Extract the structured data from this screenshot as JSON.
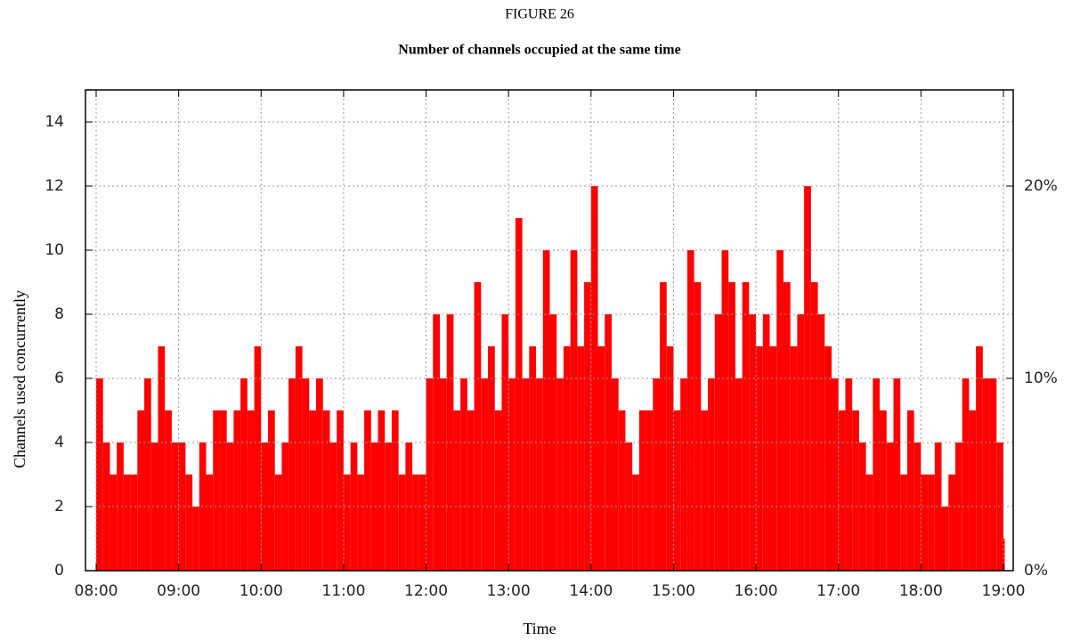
{
  "chart_data": {
    "type": "bar",
    "title": "FIGURE 26",
    "subtitle": "Number of channels occupied at the same time",
    "x_label": "Time",
    "y_label": "Channels used concurrently",
    "categories": [
      "08:00",
      "08:05",
      "08:10",
      "08:15",
      "08:20",
      "08:25",
      "08:30",
      "08:35",
      "08:40",
      "08:45",
      "08:50",
      "08:55",
      "09:00",
      "09:05",
      "09:10",
      "09:15",
      "09:20",
      "09:25",
      "09:30",
      "09:35",
      "09:40",
      "09:45",
      "09:50",
      "09:55",
      "10:00",
      "10:05",
      "10:10",
      "10:15",
      "10:20",
      "10:25",
      "10:30",
      "10:35",
      "10:40",
      "10:45",
      "10:50",
      "10:55",
      "11:00",
      "11:05",
      "11:10",
      "11:15",
      "11:20",
      "11:25",
      "11:30",
      "11:35",
      "11:40",
      "11:45",
      "11:50",
      "11:55",
      "12:00",
      "12:05",
      "12:10",
      "12:15",
      "12:20",
      "12:25",
      "12:30",
      "12:35",
      "12:40",
      "12:45",
      "12:50",
      "12:55",
      "13:00",
      "13:05",
      "13:10",
      "13:15",
      "13:20",
      "13:25",
      "13:30",
      "13:35",
      "13:40",
      "13:45",
      "13:50",
      "13:55",
      "14:00",
      "14:05",
      "14:10",
      "14:15",
      "14:20",
      "14:25",
      "14:30",
      "14:35",
      "14:40",
      "14:45",
      "14:50",
      "14:55",
      "15:00",
      "15:05",
      "15:10",
      "15:15",
      "15:20",
      "15:25",
      "15:30",
      "15:35",
      "15:40",
      "15:45",
      "15:50",
      "15:55",
      "16:00",
      "16:05",
      "16:10",
      "16:15",
      "16:20",
      "16:25",
      "16:30",
      "16:35",
      "16:40",
      "16:45",
      "16:50",
      "16:55",
      "17:00",
      "17:05",
      "17:10",
      "17:15",
      "17:20",
      "17:25",
      "17:30",
      "17:35",
      "17:40",
      "17:45",
      "17:50",
      "17:55",
      "18:00",
      "18:05",
      "18:10",
      "18:15",
      "18:20",
      "18:25",
      "18:30",
      "18:35",
      "18:40",
      "18:45",
      "18:50",
      "18:55",
      "19:00"
    ],
    "values": [
      6,
      4,
      3,
      4,
      3,
      3,
      5,
      6,
      4,
      7,
      5,
      4,
      4,
      3,
      2,
      4,
      3,
      5,
      5,
      4,
      5,
      6,
      5,
      7,
      4,
      5,
      3,
      4,
      6,
      7,
      6,
      5,
      6,
      5,
      4,
      5,
      3,
      4,
      3,
      5,
      4,
      5,
      4,
      5,
      3,
      4,
      3,
      3,
      6,
      8,
      6,
      8,
      5,
      6,
      5,
      9,
      6,
      7,
      5,
      8,
      6,
      11,
      6,
      7,
      6,
      10,
      8,
      6,
      7,
      10,
      7,
      9,
      12,
      7,
      8,
      6,
      5,
      4,
      3,
      5,
      5,
      6,
      9,
      7,
      5,
      6,
      10,
      9,
      5,
      6,
      8,
      10,
      9,
      6,
      9,
      8,
      7,
      8,
      7,
      10,
      9,
      7,
      8,
      12,
      9,
      8,
      7,
      6,
      5,
      6,
      5,
      4,
      3,
      6,
      5,
      4,
      6,
      3,
      5,
      4,
      3,
      3,
      4,
      2,
      3,
      4,
      6,
      5,
      7,
      6,
      6,
      4,
      1
    ],
    "color": "#ff0000",
    "xticks": [
      "08:00",
      "09:00",
      "10:00",
      "11:00",
      "12:00",
      "13:00",
      "14:00",
      "15:00",
      "16:00",
      "17:00",
      "18:00",
      "19:00"
    ],
    "ylim": [
      0,
      15
    ],
    "yticks": [
      0,
      2,
      4,
      6,
      8,
      10,
      12,
      14
    ],
    "y2lim": [
      0,
      25
    ],
    "y2ticks": [
      {
        "value": 0,
        "label": "0%"
      },
      {
        "value": 10,
        "label": "10%"
      },
      {
        "value": 20,
        "label": "20%"
      }
    ],
    "grid": true
  }
}
